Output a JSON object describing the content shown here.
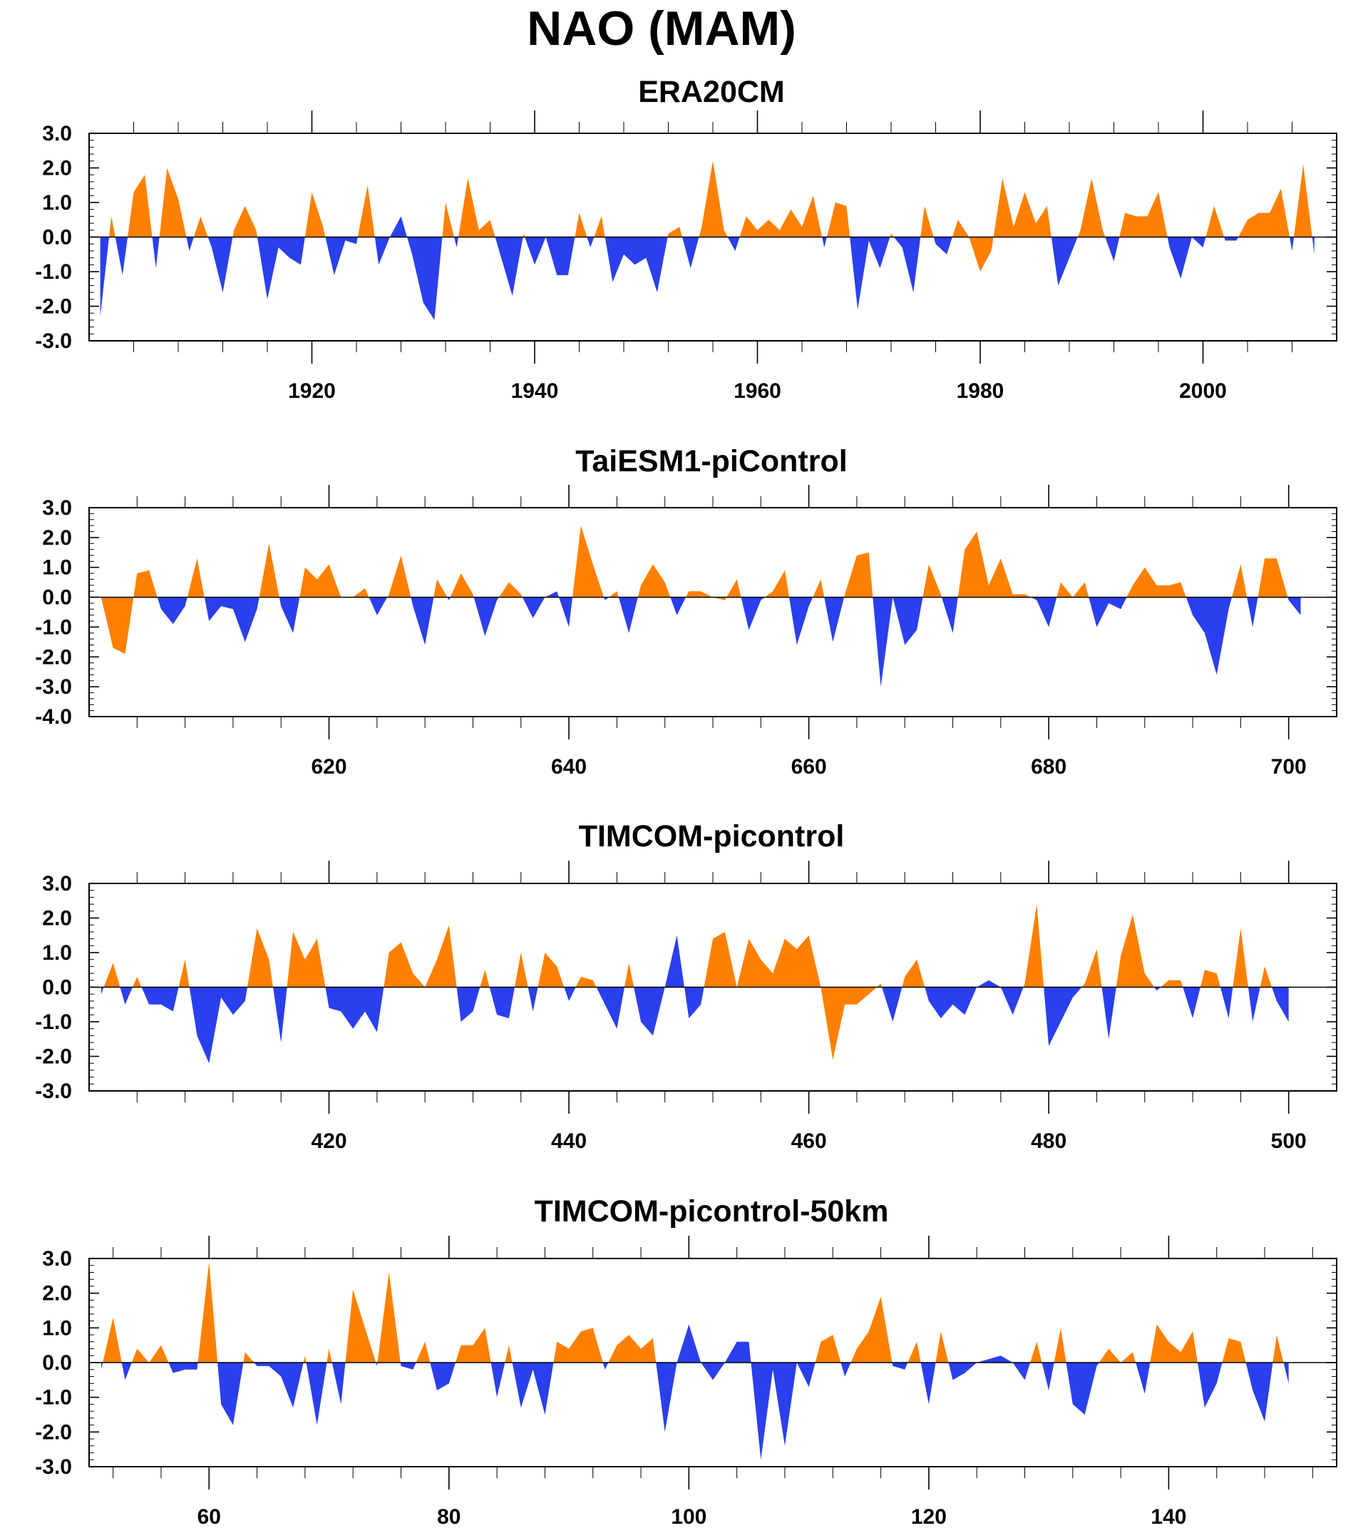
{
  "title": "NAO (MAM)",
  "colors": {
    "positive": "#ff8000",
    "negative": "#2a3fee",
    "frame": "#000000"
  },
  "chart_data": [
    {
      "type": "area",
      "title": "ERA20CM",
      "xlabel": "",
      "ylabel": "",
      "xlim": [
        1900,
        2012
      ],
      "ylim": [
        -3.0,
        3.0
      ],
      "x_start": 1901,
      "x_tick_values": [
        1920,
        1940,
        1960,
        1980,
        2000
      ],
      "x_tick_labels": [
        "1920",
        "1940",
        "1960",
        "1980",
        "2000"
      ],
      "y_tick_values": [
        3,
        2,
        1,
        0,
        -1,
        -2,
        -3
      ],
      "y_tick_labels": [
        "3.0",
        "2.0",
        "1.0",
        "0.0",
        "-1.0",
        "-2.0",
        "-3.0"
      ],
      "fill_colors": {
        "above_zero": "orange",
        "below_zero": "blue"
      },
      "values": [
        -2.3,
        0.6,
        -1.1,
        1.3,
        1.8,
        -0.9,
        2.0,
        1.1,
        -0.4,
        0.6,
        -0.3,
        -1.6,
        0.2,
        0.9,
        0.2,
        -1.8,
        -0.3,
        -0.6,
        -0.8,
        1.3,
        0.3,
        -1.1,
        -0.1,
        -0.2,
        1.5,
        -0.8,
        0.0,
        0.6,
        -0.5,
        -1.9,
        -2.4,
        1.0,
        -0.3,
        1.7,
        0.2,
        0.5,
        -0.6,
        -1.7,
        0.1,
        -0.8,
        0.0,
        -1.1,
        -1.1,
        0.7,
        -0.3,
        0.6,
        -1.3,
        -0.5,
        -0.8,
        -0.6,
        -1.6,
        0.1,
        0.3,
        -0.9,
        0.3,
        2.2,
        0.2,
        -0.4,
        0.6,
        0.2,
        0.5,
        0.2,
        0.8,
        0.3,
        1.2,
        -0.3,
        1.0,
        0.9,
        -2.1,
        -0.1,
        -0.9,
        0.1,
        -0.3,
        -1.6,
        0.9,
        -0.2,
        -0.5,
        0.5,
        0.0,
        -1.0,
        -0.4,
        1.7,
        0.3,
        1.3,
        0.4,
        0.9,
        -1.4,
        -0.6,
        0.2,
        1.7,
        0.2,
        -0.7,
        0.7,
        0.6,
        0.6,
        1.3,
        -0.3,
        -1.2,
        0.0,
        -0.3,
        0.9,
        -0.1,
        -0.1,
        0.5,
        0.7,
        0.7,
        1.4,
        -0.4,
        2.1,
        -0.5
      ]
    },
    {
      "type": "area",
      "title": "TaiESM1-piControl",
      "xlabel": "",
      "ylabel": "",
      "xlim": [
        600,
        704
      ],
      "ylim": [
        -4.0,
        3.0
      ],
      "x_start": 601,
      "x_tick_values": [
        620,
        640,
        660,
        680,
        700
      ],
      "x_tick_labels": [
        "620",
        "640",
        "660",
        "680",
        "700"
      ],
      "y_tick_values": [
        3,
        2,
        1,
        0,
        -1,
        -2,
        -3,
        -4
      ],
      "y_tick_labels": [
        "3.0",
        "2.0",
        "1.0",
        "0.0",
        "-1.0",
        "-2.0",
        "-3.0",
        "-4.0"
      ],
      "fill_colors": {
        "above_zero": "orange",
        "below_zero": "blue"
      },
      "values": [
        0.0,
        -1.7,
        -1.9,
        0.8,
        0.9,
        -0.4,
        -0.9,
        -0.3,
        1.3,
        -0.8,
        -0.3,
        -0.4,
        -1.5,
        -0.4,
        1.8,
        -0.3,
        -1.2,
        1.0,
        0.6,
        1.1,
        0.0,
        0.0,
        0.3,
        -0.6,
        0.1,
        1.4,
        -0.3,
        -1.6,
        0.6,
        -0.1,
        0.8,
        0.1,
        -1.3,
        -0.1,
        0.5,
        0.1,
        -0.7,
        0.0,
        0.2,
        -1.0,
        2.4,
        1.1,
        -0.1,
        0.2,
        -1.2,
        0.4,
        1.1,
        0.5,
        -0.6,
        0.2,
        0.2,
        0.0,
        -0.1,
        0.6,
        -1.1,
        -0.1,
        0.2,
        0.9,
        -1.6,
        -0.3,
        0.6,
        -1.5,
        0.1,
        1.4,
        1.5,
        -3.0,
        0.0,
        -1.6,
        -1.1,
        1.1,
        0.1,
        -1.2,
        1.6,
        2.2,
        0.4,
        1.3,
        0.1,
        0.1,
        -0.1,
        -1.0,
        0.5,
        0.0,
        0.5,
        -1.0,
        -0.2,
        -0.4,
        0.4,
        1.0,
        0.4,
        0.4,
        0.5,
        -0.6,
        -1.2,
        -2.6,
        -0.4,
        1.1,
        -1.0,
        1.3,
        1.3,
        -0.1,
        -0.6
      ]
    },
    {
      "type": "area",
      "title": "TIMCOM-picontrol",
      "xlabel": "",
      "ylabel": "",
      "xlim": [
        400,
        504
      ],
      "ylim": [
        -3.0,
        3.0
      ],
      "x_start": 401,
      "x_tick_values": [
        420,
        440,
        460,
        480,
        500
      ],
      "x_tick_labels": [
        "420",
        "440",
        "460",
        "480",
        "500"
      ],
      "y_tick_values": [
        3,
        2,
        1,
        0,
        -1,
        -2,
        -3
      ],
      "y_tick_labels": [
        "3.0",
        "2.0",
        "1.0",
        "0.0",
        "-1.0",
        "-2.0",
        "-3.0"
      ],
      "fill_colors": {
        "above_zero": "orange",
        "below_zero": "blue"
      },
      "values": [
        -0.2,
        0.7,
        -0.5,
        0.3,
        -0.5,
        -0.5,
        -0.7,
        0.8,
        -1.4,
        -2.2,
        -0.3,
        -0.8,
        -0.4,
        1.7,
        0.8,
        -1.6,
        1.6,
        0.8,
        1.4,
        -0.6,
        -0.7,
        -1.2,
        -0.7,
        -1.3,
        1.0,
        1.3,
        0.4,
        0.0,
        0.8,
        1.8,
        -1.0,
        -0.7,
        0.5,
        -0.8,
        -0.9,
        1.0,
        -0.7,
        1.0,
        0.6,
        -0.4,
        0.3,
        0.2,
        -0.5,
        -1.2,
        0.7,
        -1.0,
        -1.4,
        0.0,
        1.5,
        -0.9,
        -0.5,
        1.4,
        1.6,
        0.0,
        1.4,
        0.8,
        0.4,
        1.4,
        1.1,
        1.5,
        0.0,
        -2.1,
        -0.5,
        -0.5,
        -0.2,
        0.1,
        -1.0,
        0.3,
        0.8,
        -0.4,
        -0.9,
        -0.5,
        -0.8,
        0.0,
        0.2,
        0.0,
        -0.8,
        0.1,
        2.4,
        -1.7,
        -1.0,
        -0.3,
        0.1,
        1.1,
        -1.5,
        0.9,
        2.1,
        0.4,
        -0.1,
        0.2,
        0.2,
        -0.9,
        0.5,
        0.4,
        -0.9,
        1.7,
        -1.0,
        0.6,
        -0.4,
        -1.0
      ]
    },
    {
      "type": "area",
      "title": "TIMCOM-picontrol-50km",
      "xlabel": "",
      "ylabel": "",
      "xlim": [
        50,
        154
      ],
      "ylim": [
        -3.0,
        3.0
      ],
      "x_start": 51,
      "x_tick_values": [
        60,
        80,
        100,
        120,
        140
      ],
      "x_tick_labels": [
        "60",
        "80",
        "100",
        "120",
        "140"
      ],
      "y_tick_values": [
        3,
        2,
        1,
        0,
        -1,
        -2,
        -3
      ],
      "y_tick_labels": [
        "3.0",
        "2.0",
        "1.0",
        "0.0",
        "-1.0",
        "-2.0",
        "-3.0"
      ],
      "fill_colors": {
        "above_zero": "orange",
        "below_zero": "blue"
      },
      "values": [
        -0.2,
        1.3,
        -0.5,
        0.4,
        0.0,
        0.5,
        -0.3,
        -0.2,
        -0.2,
        2.9,
        -1.2,
        -1.8,
        0.3,
        -0.1,
        -0.1,
        -0.4,
        -1.3,
        0.2,
        -1.8,
        0.4,
        -1.2,
        2.1,
        1.0,
        -0.1,
        2.6,
        -0.1,
        -0.2,
        0.6,
        -0.8,
        -0.6,
        0.5,
        0.5,
        1.0,
        -1.0,
        0.5,
        -1.3,
        -0.2,
        -1.5,
        0.6,
        0.4,
        0.9,
        1.0,
        -0.2,
        0.5,
        0.8,
        0.4,
        0.7,
        -2.0,
        0.0,
        1.1,
        0.0,
        -0.5,
        0.0,
        0.6,
        0.6,
        -2.8,
        -0.2,
        -2.4,
        0.0,
        -0.7,
        0.6,
        0.8,
        -0.4,
        0.4,
        0.9,
        1.9,
        -0.1,
        -0.2,
        0.6,
        -1.2,
        0.9,
        -0.5,
        -0.3,
        0.0,
        0.1,
        0.2,
        0.0,
        -0.5,
        0.6,
        -0.8,
        1.0,
        -1.2,
        -1.5,
        -0.1,
        0.4,
        0.0,
        0.3,
        -0.9,
        1.1,
        0.6,
        0.3,
        0.9,
        -1.3,
        -0.6,
        0.7,
        0.6,
        -0.8,
        -1.7,
        0.8,
        -0.6
      ]
    }
  ]
}
